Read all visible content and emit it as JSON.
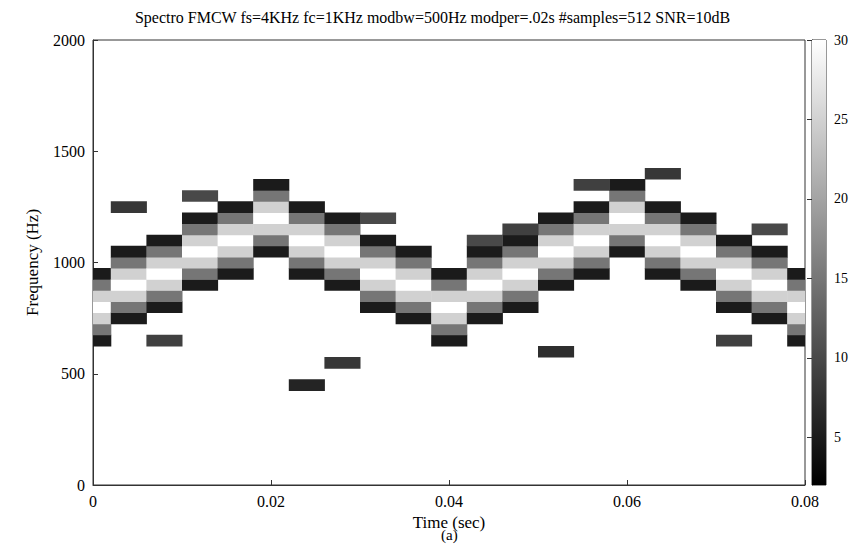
{
  "chart_data": {
    "type": "heatmap",
    "title": "Spectro FMCW fs=4KHz fc=1KHz modbw=500Hz modper=.02s #samples=512 SNR=10dB",
    "caption": "(a)",
    "x_label": "Time (sec)",
    "y_label": "Frequency (Hz)",
    "xlim": [
      0,
      0.08
    ],
    "xticks": [
      0,
      0.02,
      0.04,
      0.06,
      0.08
    ],
    "ylim": [
      0,
      2000
    ],
    "yticks": [
      0,
      500,
      1000,
      1500,
      2000
    ],
    "grid": false,
    "colorbar": {
      "range": [
        2,
        30
      ],
      "ticks": [
        5,
        10,
        15,
        20,
        25,
        30
      ],
      "colors": [
        "#000000",
        "#ffffff"
      ]
    },
    "x": [
      0,
      0.004,
      0.008,
      0.012,
      0.016,
      0.02,
      0.024,
      0.028,
      0.032,
      0.036,
      0.04,
      0.044,
      0.048,
      0.052,
      0.056,
      0.06,
      0.064,
      0.068,
      0.072,
      0.076,
      0.08
    ],
    "y": [
      0,
      50,
      100,
      150,
      200,
      250,
      300,
      350,
      400,
      450,
      500,
      550,
      600,
      650,
      700,
      750,
      800,
      850,
      900,
      950,
      1000,
      1050,
      1100,
      1150,
      1200,
      1250,
      1300,
      1350,
      1400,
      1450,
      1500,
      1550,
      1600,
      1650,
      1700,
      1750,
      1800,
      1850,
      1900,
      1950,
      2000
    ],
    "cells": [
      [
        0,
        13,
        5
      ],
      [
        0,
        14,
        15
      ],
      [
        0,
        15,
        25
      ],
      [
        0,
        16,
        30
      ],
      [
        0,
        17,
        25
      ],
      [
        0,
        18,
        15
      ],
      [
        0,
        19,
        5
      ],
      [
        1,
        15,
        5
      ],
      [
        1,
        16,
        15
      ],
      [
        1,
        17,
        25
      ],
      [
        1,
        18,
        30
      ],
      [
        1,
        19,
        25
      ],
      [
        1,
        20,
        15
      ],
      [
        1,
        21,
        5
      ],
      [
        2,
        16,
        5
      ],
      [
        2,
        17,
        15
      ],
      [
        2,
        18,
        25
      ],
      [
        2,
        19,
        30
      ],
      [
        2,
        20,
        25
      ],
      [
        2,
        21,
        15
      ],
      [
        2,
        22,
        5
      ],
      [
        3,
        18,
        5
      ],
      [
        3,
        19,
        15
      ],
      [
        3,
        20,
        25
      ],
      [
        3,
        21,
        30
      ],
      [
        3,
        22,
        25
      ],
      [
        3,
        23,
        15
      ],
      [
        3,
        24,
        5
      ],
      [
        4,
        19,
        5
      ],
      [
        4,
        20,
        15
      ],
      [
        4,
        21,
        25
      ],
      [
        4,
        22,
        30
      ],
      [
        4,
        23,
        25
      ],
      [
        4,
        24,
        15
      ],
      [
        4,
        25,
        5
      ],
      [
        5,
        21,
        5
      ],
      [
        5,
        22,
        15
      ],
      [
        5,
        23,
        25
      ],
      [
        5,
        24,
        30
      ],
      [
        5,
        25,
        25
      ],
      [
        5,
        26,
        15
      ],
      [
        5,
        27,
        5
      ],
      [
        6,
        19,
        5
      ],
      [
        6,
        20,
        15
      ],
      [
        6,
        21,
        25
      ],
      [
        6,
        22,
        30
      ],
      [
        6,
        23,
        25
      ],
      [
        6,
        24,
        15
      ],
      [
        6,
        25,
        5
      ],
      [
        7,
        18,
        5
      ],
      [
        7,
        19,
        15
      ],
      [
        7,
        20,
        25
      ],
      [
        7,
        21,
        30
      ],
      [
        7,
        22,
        25
      ],
      [
        7,
        23,
        15
      ],
      [
        7,
        24,
        5
      ],
      [
        8,
        16,
        5
      ],
      [
        8,
        17,
        15
      ],
      [
        8,
        18,
        25
      ],
      [
        8,
        19,
        30
      ],
      [
        8,
        20,
        25
      ],
      [
        8,
        21,
        15
      ],
      [
        8,
        22,
        5
      ],
      [
        9,
        15,
        5
      ],
      [
        9,
        16,
        15
      ],
      [
        9,
        17,
        25
      ],
      [
        9,
        18,
        30
      ],
      [
        9,
        19,
        25
      ],
      [
        9,
        20,
        15
      ],
      [
        9,
        21,
        5
      ],
      [
        10,
        13,
        5
      ],
      [
        10,
        14,
        15
      ],
      [
        10,
        15,
        25
      ],
      [
        10,
        16,
        30
      ],
      [
        10,
        17,
        25
      ],
      [
        10,
        18,
        15
      ],
      [
        10,
        19,
        5
      ],
      [
        11,
        15,
        5
      ],
      [
        11,
        16,
        15
      ],
      [
        11,
        17,
        25
      ],
      [
        11,
        18,
        30
      ],
      [
        11,
        19,
        25
      ],
      [
        11,
        20,
        15
      ],
      [
        11,
        21,
        5
      ],
      [
        12,
        16,
        5
      ],
      [
        12,
        17,
        15
      ],
      [
        12,
        18,
        25
      ],
      [
        12,
        19,
        30
      ],
      [
        12,
        20,
        25
      ],
      [
        12,
        21,
        15
      ],
      [
        12,
        22,
        5
      ],
      [
        13,
        18,
        5
      ],
      [
        13,
        19,
        15
      ],
      [
        13,
        20,
        25
      ],
      [
        13,
        21,
        30
      ],
      [
        13,
        22,
        25
      ],
      [
        13,
        23,
        15
      ],
      [
        13,
        24,
        5
      ],
      [
        14,
        19,
        5
      ],
      [
        14,
        20,
        15
      ],
      [
        14,
        21,
        25
      ],
      [
        14,
        22,
        30
      ],
      [
        14,
        23,
        25
      ],
      [
        14,
        24,
        15
      ],
      [
        14,
        25,
        5
      ],
      [
        15,
        21,
        5
      ],
      [
        15,
        22,
        15
      ],
      [
        15,
        23,
        25
      ],
      [
        15,
        24,
        30
      ],
      [
        15,
        25,
        25
      ],
      [
        15,
        26,
        15
      ],
      [
        15,
        27,
        5
      ],
      [
        16,
        19,
        5
      ],
      [
        16,
        20,
        15
      ],
      [
        16,
        21,
        25
      ],
      [
        16,
        22,
        30
      ],
      [
        16,
        23,
        25
      ],
      [
        16,
        24,
        15
      ],
      [
        16,
        25,
        5
      ],
      [
        17,
        18,
        5
      ],
      [
        17,
        19,
        15
      ],
      [
        17,
        20,
        25
      ],
      [
        17,
        21,
        30
      ],
      [
        17,
        22,
        25
      ],
      [
        17,
        23,
        15
      ],
      [
        17,
        24,
        5
      ],
      [
        18,
        16,
        5
      ],
      [
        18,
        17,
        15
      ],
      [
        18,
        18,
        25
      ],
      [
        18,
        19,
        30
      ],
      [
        18,
        20,
        25
      ],
      [
        18,
        21,
        15
      ],
      [
        18,
        22,
        5
      ],
      [
        19,
        15,
        5
      ],
      [
        19,
        16,
        15
      ],
      [
        19,
        17,
        25
      ],
      [
        19,
        18,
        30
      ],
      [
        19,
        19,
        25
      ],
      [
        19,
        20,
        15
      ],
      [
        19,
        21,
        5
      ],
      [
        20,
        13,
        5
      ],
      [
        20,
        14,
        15
      ],
      [
        20,
        15,
        25
      ],
      [
        20,
        16,
        30
      ],
      [
        20,
        17,
        25
      ],
      [
        20,
        18,
        15
      ],
      [
        20,
        19,
        5
      ],
      [
        1,
        25,
        8
      ],
      [
        3,
        26,
        10
      ],
      [
        2,
        13,
        9
      ],
      [
        6,
        9,
        6
      ],
      [
        7,
        11,
        8
      ],
      [
        8,
        24,
        10
      ],
      [
        11,
        22,
        10
      ],
      [
        12,
        23,
        9
      ],
      [
        13,
        12,
        7
      ],
      [
        14,
        27,
        9
      ],
      [
        16,
        28,
        8
      ],
      [
        18,
        13,
        9
      ],
      [
        19,
        23,
        10
      ]
    ]
  }
}
